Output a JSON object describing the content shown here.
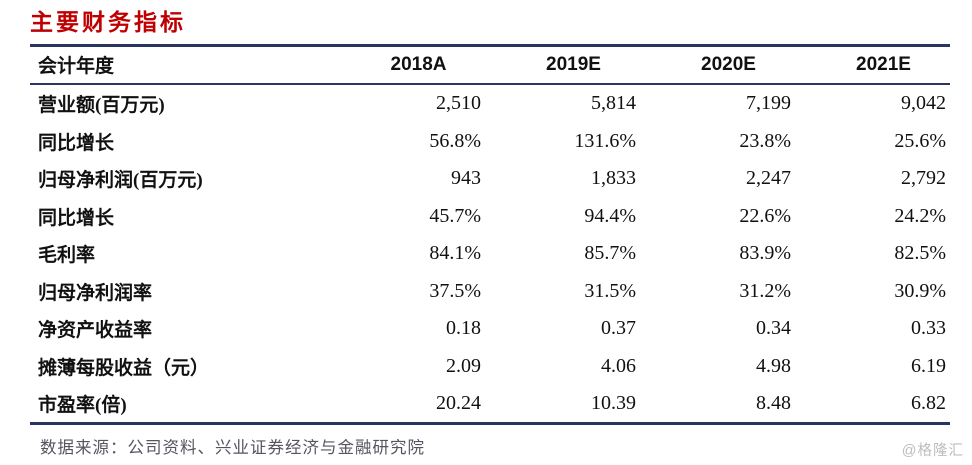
{
  "title": "主要财务指标",
  "colors": {
    "accent_red": "#c00000",
    "line_navy": "#2a3560",
    "footer_gray": "#54555f",
    "watermark_gray": "#bcbcbc"
  },
  "table": {
    "header": [
      "会计年度",
      "2018A",
      "2019E",
      "2020E",
      "2021E"
    ],
    "rows": [
      {
        "label": "营业额(百万元)",
        "values": [
          "2,510",
          "5,814",
          "7,199",
          "9,042"
        ]
      },
      {
        "label": "同比增长",
        "values": [
          "56.8%",
          "131.6%",
          "23.8%",
          "25.6%"
        ]
      },
      {
        "label": "归母净利润(百万元)",
        "values": [
          "943",
          "1,833",
          "2,247",
          "2,792"
        ]
      },
      {
        "label": "同比增长",
        "values": [
          "45.7%",
          "94.4%",
          "22.6%",
          "24.2%"
        ]
      },
      {
        "label": "毛利率",
        "values": [
          "84.1%",
          "85.7%",
          "83.9%",
          "82.5%"
        ]
      },
      {
        "label": "归母净利润率",
        "values": [
          "37.5%",
          "31.5%",
          "31.2%",
          "30.9%"
        ]
      },
      {
        "label": "净资产收益率",
        "values": [
          "0.18",
          "0.37",
          "0.34",
          "0.33"
        ]
      },
      {
        "label": "摊薄每股收益（元）",
        "values": [
          "2.09",
          "4.06",
          "4.98",
          "6.19"
        ]
      },
      {
        "label": "市盈率(倍)",
        "values": [
          "20.24",
          "10.39",
          "8.48",
          "6.82"
        ]
      }
    ]
  },
  "source_note": "数据来源：公司资料、兴业证券经济与金融研究院",
  "watermark": "@格隆汇"
}
